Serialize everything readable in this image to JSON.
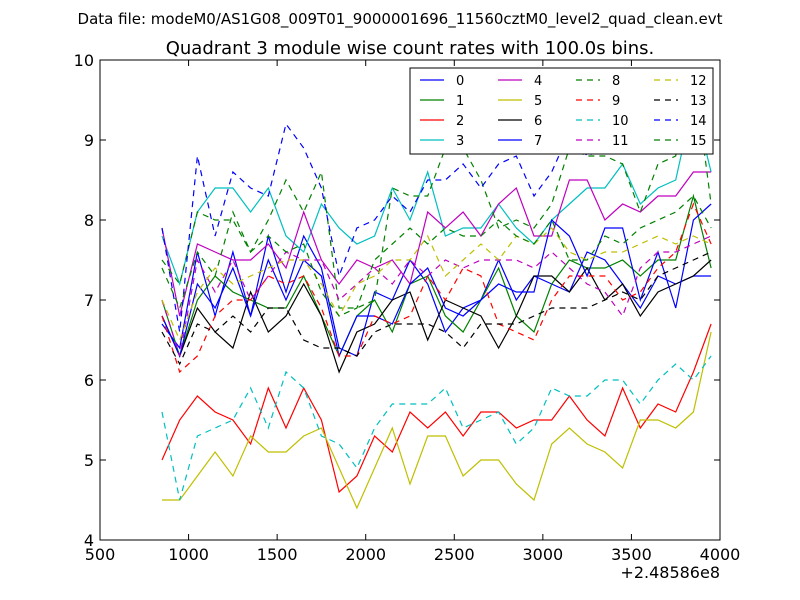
{
  "chart_data": {
    "type": "line",
    "suptitle": "Data file: modeM0/AS1G08_009T01_9000001696_11560cztM0_level2_quad_clean.evt",
    "title": "Quadrant 3 module wise count rates with 100.0s bins.",
    "xlabel": "",
    "ylabel": "",
    "x_offset_label": "+2.48586e8",
    "xlim": [
      500,
      4000
    ],
    "ylim": [
      4,
      10
    ],
    "xticks": [
      500,
      1000,
      1500,
      2000,
      2500,
      3000,
      3500,
      4000
    ],
    "yticks": [
      4,
      5,
      6,
      7,
      8,
      9,
      10
    ],
    "grid": false,
    "legend_position": "top-right",
    "x": [
      850,
      950,
      1050,
      1150,
      1250,
      1350,
      1450,
      1550,
      1650,
      1750,
      1850,
      1950,
      2050,
      2150,
      2250,
      2350,
      2450,
      2550,
      2650,
      2750,
      2850,
      2950,
      3050,
      3150,
      3250,
      3350,
      3450,
      3550,
      3650,
      3750,
      3850,
      3950
    ],
    "series": [
      {
        "name": "0",
        "color": "#0000ff",
        "dash": "solid",
        "values": [
          6.7,
          6.4,
          7.6,
          6.8,
          7.6,
          6.8,
          7.8,
          7.1,
          7.8,
          7.4,
          6.4,
          6.3,
          7.1,
          7.0,
          7.5,
          7.2,
          6.6,
          6.9,
          7.0,
          7.5,
          7.0,
          7.3,
          7.2,
          7.1,
          7.6,
          7.5,
          7.2,
          6.9,
          7.3,
          7.2,
          7.3,
          7.3
        ]
      },
      {
        "name": "1",
        "color": "#008000",
        "dash": "solid",
        "values": [
          7.0,
          6.3,
          7.0,
          7.3,
          7.1,
          7.0,
          6.9,
          6.9,
          7.3,
          6.8,
          6.3,
          6.8,
          7.0,
          6.6,
          7.2,
          7.3,
          6.8,
          6.6,
          7.0,
          7.4,
          6.8,
          6.6,
          7.2,
          7.5,
          7.4,
          7.4,
          7.5,
          7.3,
          7.5,
          7.5,
          8.3,
          7.4
        ]
      },
      {
        "name": "2",
        "color": "#ff0000",
        "dash": "solid",
        "values": [
          5.0,
          5.5,
          5.8,
          5.6,
          5.5,
          5.2,
          5.9,
          5.4,
          5.9,
          5.5,
          4.6,
          4.8,
          5.3,
          5.1,
          5.6,
          5.4,
          5.6,
          5.3,
          5.6,
          5.6,
          5.4,
          5.5,
          5.5,
          5.8,
          5.5,
          5.3,
          5.9,
          5.4,
          5.7,
          5.6,
          6.1,
          6.7
        ]
      },
      {
        "name": "3",
        "color": "#00bfbf",
        "dash": "solid",
        "values": [
          7.8,
          7.2,
          8.1,
          8.4,
          8.4,
          8.1,
          8.4,
          7.8,
          7.6,
          8.2,
          7.9,
          7.7,
          7.8,
          8.4,
          8.0,
          8.6,
          7.8,
          7.9,
          7.9,
          8.2,
          7.9,
          7.7,
          8.0,
          8.2,
          8.4,
          8.4,
          8.7,
          8.2,
          8.4,
          8.5,
          9.5,
          8.6
        ]
      },
      {
        "name": "4",
        "color": "#bf00bf",
        "dash": "solid",
        "values": [
          7.9,
          6.8,
          7.7,
          7.6,
          7.5,
          7.5,
          7.7,
          7.4,
          8.1,
          7.5,
          7.2,
          7.5,
          7.4,
          7.5,
          7.2,
          8.1,
          7.9,
          8.1,
          7.8,
          8.2,
          8.4,
          7.8,
          7.8,
          8.5,
          8.5,
          8.0,
          8.2,
          8.1,
          8.3,
          8.3,
          8.6,
          8.6
        ]
      },
      {
        "name": "5",
        "color": "#bfbf00",
        "dash": "solid",
        "values": [
          4.5,
          4.5,
          4.8,
          5.1,
          4.8,
          5.3,
          5.1,
          5.1,
          5.3,
          5.4,
          4.9,
          4.4,
          4.9,
          5.4,
          4.7,
          5.3,
          5.3,
          4.8,
          5.0,
          5.0,
          4.7,
          4.5,
          5.2,
          5.4,
          5.2,
          5.1,
          4.9,
          5.5,
          5.5,
          5.4,
          5.6,
          6.6
        ]
      },
      {
        "name": "6",
        "color": "#000000",
        "dash": "solid",
        "values": [
          6.8,
          6.3,
          6.9,
          6.6,
          6.4,
          7.1,
          6.6,
          6.8,
          7.2,
          6.8,
          6.1,
          6.6,
          6.7,
          7.0,
          7.1,
          6.5,
          7.0,
          6.9,
          6.8,
          6.4,
          6.8,
          7.3,
          7.3,
          7.1,
          7.4,
          7.0,
          7.2,
          6.8,
          7.1,
          7.2,
          7.3,
          7.5
        ]
      },
      {
        "name": "7",
        "color": "#0000ff",
        "dash": "solid",
        "values": [
          6.8,
          6.3,
          7.2,
          6.9,
          7.4,
          6.8,
          7.5,
          7.0,
          7.5,
          7.3,
          6.3,
          6.8,
          6.8,
          6.7,
          7.2,
          7.4,
          6.9,
          6.8,
          7.0,
          7.2,
          7.1,
          7.1,
          8.0,
          7.8,
          7.3,
          7.9,
          7.9,
          7.0,
          7.6,
          6.9,
          8.0,
          8.2
        ]
      },
      {
        "name": "8",
        "color": "#008000",
        "dash": "dashed",
        "values": [
          7.5,
          7.2,
          8.1,
          8.0,
          8.0,
          7.6,
          8.0,
          8.5,
          8.1,
          8.6,
          6.9,
          6.9,
          7.0,
          8.4,
          8.3,
          8.3,
          8.9,
          8.9,
          8.5,
          7.9,
          8.0,
          7.9,
          8.2,
          8.9,
          8.8,
          8.8,
          8.7,
          8.1,
          8.7,
          8.8,
          9.9,
          8.2
        ]
      },
      {
        "name": "9",
        "color": "#ff0000",
        "dash": "dashed",
        "values": [
          6.8,
          6.1,
          6.3,
          6.8,
          7.0,
          7.0,
          7.3,
          7.2,
          7.3,
          6.9,
          6.3,
          6.3,
          6.8,
          6.7,
          6.8,
          7.3,
          7.0,
          7.4,
          7.3,
          6.7,
          6.6,
          6.5,
          7.0,
          7.3,
          7.3,
          7.3,
          7.0,
          7.1,
          7.4,
          7.6,
          8.2,
          7.7
        ]
      },
      {
        "name": "10",
        "color": "#00bfbf",
        "dash": "dashed",
        "values": [
          5.6,
          4.5,
          5.3,
          5.4,
          5.5,
          5.9,
          5.4,
          6.1,
          5.9,
          5.3,
          5.2,
          4.9,
          5.4,
          5.7,
          5.7,
          5.7,
          5.9,
          5.4,
          5.5,
          5.6,
          5.2,
          5.4,
          5.9,
          5.8,
          5.8,
          6.0,
          6.0,
          5.7,
          6.0,
          6.2,
          6.0,
          6.3
        ]
      },
      {
        "name": "11",
        "color": "#bf00bf",
        "dash": "dashed",
        "values": [
          7.0,
          6.3,
          7.5,
          7.1,
          7.5,
          7.0,
          7.3,
          7.6,
          7.5,
          7.5,
          7.0,
          7.2,
          7.4,
          7.2,
          7.5,
          7.3,
          7.5,
          7.4,
          7.5,
          7.5,
          7.5,
          7.4,
          7.6,
          7.4,
          7.2,
          7.1,
          6.8,
          7.4,
          7.6,
          7.6,
          7.7,
          7.8
        ]
      },
      {
        "name": "12",
        "color": "#bfbf00",
        "dash": "dashed",
        "values": [
          7.0,
          6.5,
          7.1,
          7.4,
          7.2,
          7.3,
          7.4,
          7.5,
          7.5,
          7.2,
          6.8,
          7.2,
          7.3,
          7.5,
          7.5,
          7.8,
          7.3,
          7.5,
          7.7,
          7.5,
          7.8,
          7.7,
          7.9,
          7.6,
          7.5,
          7.6,
          7.6,
          7.7,
          7.8,
          7.7,
          7.8,
          7.7
        ]
      },
      {
        "name": "13",
        "color": "#000000",
        "dash": "dashed",
        "values": [
          6.6,
          6.2,
          6.7,
          6.6,
          6.8,
          6.6,
          6.9,
          6.9,
          6.5,
          6.4,
          6.4,
          6.3,
          6.6,
          6.7,
          6.7,
          6.7,
          6.6,
          6.4,
          6.7,
          6.7,
          6.7,
          6.8,
          6.9,
          6.9,
          6.9,
          7.0,
          7.1,
          7.0,
          7.3,
          7.4,
          7.5,
          7.6
        ]
      },
      {
        "name": "14",
        "color": "#0000ff",
        "dash": "dashed",
        "values": [
          7.9,
          6.6,
          8.8,
          7.8,
          8.6,
          8.4,
          8.3,
          9.2,
          8.9,
          8.4,
          7.3,
          7.9,
          8.0,
          8.3,
          8.1,
          8.5,
          8.5,
          8.7,
          8.4,
          8.7,
          8.8,
          8.3,
          8.6,
          9.1,
          8.8,
          8.9,
          9.3,
          8.9,
          9.1,
          9.2,
          9.6,
          8.9
        ]
      },
      {
        "name": "15",
        "color": "#008000",
        "dash": "dashed",
        "values": [
          7.4,
          6.9,
          7.6,
          7.3,
          8.1,
          7.6,
          7.8,
          7.6,
          7.7,
          7.1,
          6.8,
          6.9,
          7.5,
          7.7,
          7.9,
          7.7,
          7.9,
          7.8,
          7.8,
          8.0,
          7.8,
          7.7,
          8.0,
          7.5,
          7.5,
          7.8,
          7.7,
          7.9,
          8.0,
          8.1,
          8.3,
          7.9
        ]
      }
    ]
  }
}
